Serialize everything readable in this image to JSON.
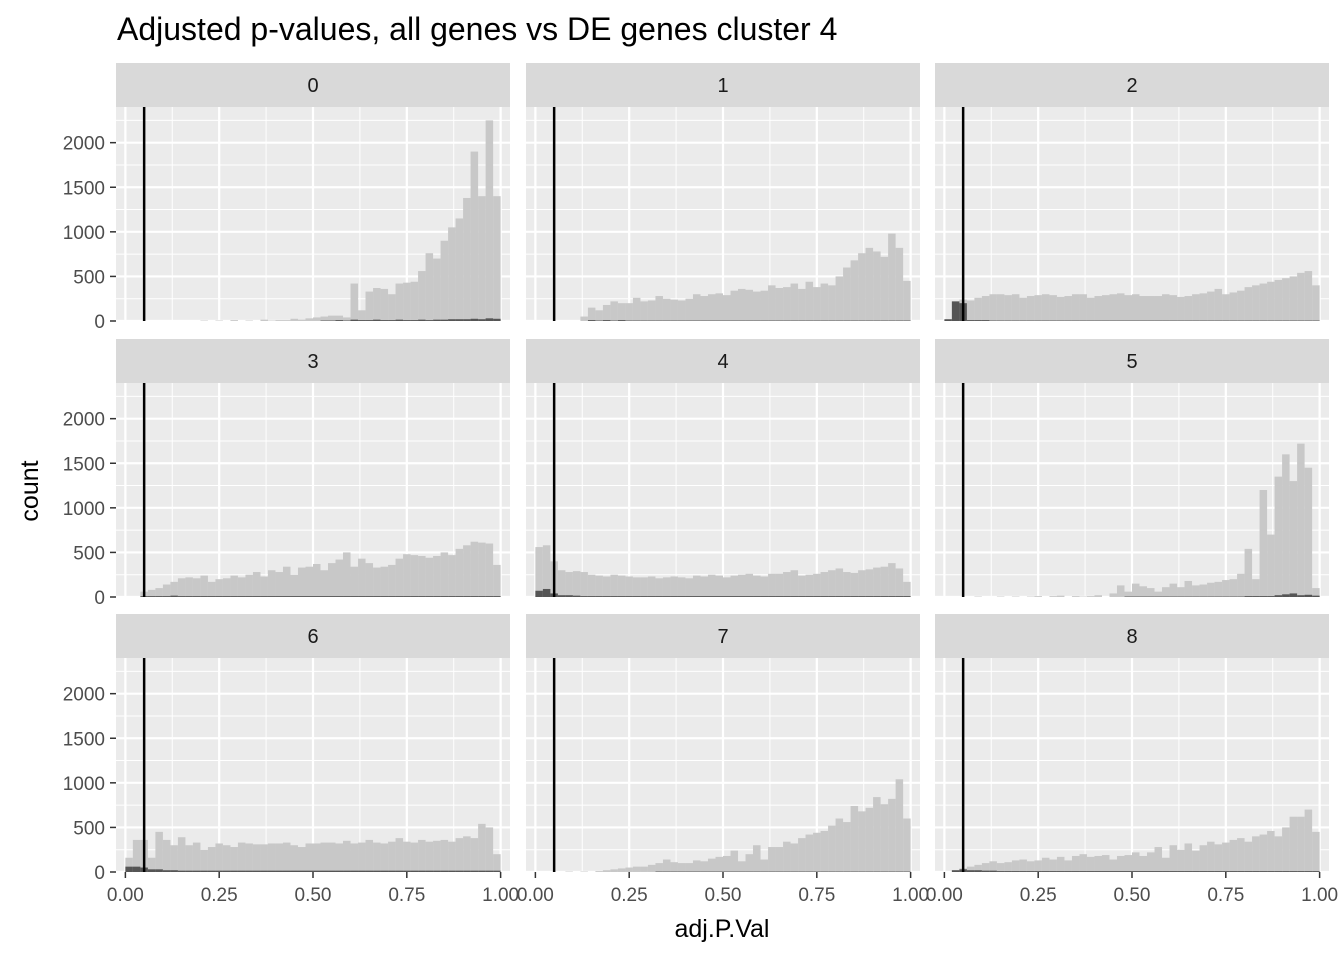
{
  "chart_data": {
    "type": "bar",
    "subtype": "faceted-histogram",
    "title": "Adjusted p-values, all genes vs DE genes cluster 4",
    "xlabel": "adj.P.Val",
    "ylabel": "count",
    "xlim": [
      -0.025,
      1.025
    ],
    "ylim": [
      0,
      2400
    ],
    "x_ticks": [
      0,
      0.25,
      0.5,
      0.75,
      1
    ],
    "x_tick_labels": [
      "0.00",
      "0.25",
      "0.50",
      "0.75",
      "1.00"
    ],
    "y_ticks": [
      0,
      500,
      1000,
      1500,
      2000
    ],
    "y_tick_labels": [
      "0",
      "500",
      "1000",
      "1500",
      "2000"
    ],
    "threshold": 0.05,
    "bin_width": 0.02,
    "grid": true,
    "colors": {
      "all_genes": "#c8c8c8",
      "de_genes": "#555555",
      "threshold_line": "#000000",
      "panel_bg": "#ebebeb",
      "strip_bg": "#d9d9d9",
      "grid": "#ffffff",
      "axis_text": "#4d4d4d",
      "strip_text": "#1a1a1a"
    },
    "facets": [
      {
        "label": "0",
        "all": [
          0,
          0,
          0,
          0,
          0,
          0,
          0,
          0,
          0,
          0,
          5,
          0,
          5,
          0,
          10,
          0,
          5,
          0,
          15,
          5,
          10,
          10,
          25,
          15,
          30,
          40,
          50,
          60,
          60,
          40,
          420,
          120,
          330,
          370,
          360,
          300,
          420,
          430,
          440,
          560,
          760,
          700,
          900,
          1050,
          1150,
          1380,
          1900,
          1400,
          2250,
          1400
        ],
        "de": [
          0,
          0,
          0,
          0,
          0,
          0,
          0,
          0,
          0,
          0,
          0,
          0,
          0,
          0,
          0,
          0,
          0,
          0,
          0,
          0,
          0,
          0,
          0,
          0,
          0,
          0,
          5,
          5,
          10,
          5,
          15,
          10,
          10,
          15,
          10,
          10,
          15,
          10,
          10,
          15,
          10,
          15,
          15,
          20,
          20,
          20,
          25,
          20,
          30,
          25
        ]
      },
      {
        "label": "1",
        "all": [
          0,
          0,
          0,
          0,
          0,
          0,
          50,
          150,
          120,
          180,
          220,
          200,
          200,
          260,
          220,
          230,
          280,
          250,
          240,
          230,
          250,
          300,
          280,
          300,
          310,
          290,
          340,
          360,
          350,
          330,
          340,
          400,
          370,
          380,
          420,
          360,
          440,
          380,
          420,
          400,
          500,
          600,
          680,
          760,
          820,
          780,
          720,
          980,
          820,
          450
        ],
        "de": [
          0,
          0,
          0,
          0,
          0,
          0,
          0,
          10,
          5,
          10,
          5,
          10,
          5,
          5,
          5,
          5,
          5,
          5,
          5,
          5,
          5,
          5,
          5,
          5,
          5,
          5,
          5,
          5,
          5,
          5,
          5,
          5,
          5,
          5,
          5,
          5,
          5,
          5,
          5,
          5,
          5,
          5,
          5,
          5,
          5,
          5,
          5,
          5,
          5,
          5
        ]
      },
      {
        "label": "2",
        "all": [
          0,
          220,
          240,
          230,
          260,
          280,
          300,
          300,
          290,
          300,
          260,
          280,
          290,
          300,
          290,
          270,
          280,
          300,
          300,
          260,
          280,
          290,
          300,
          310,
          290,
          300,
          280,
          280,
          280,
          300,
          290,
          270,
          280,
          300,
          310,
          330,
          360,
          300,
          320,
          340,
          380,
          400,
          420,
          440,
          460,
          480,
          500,
          540,
          560,
          400
        ],
        "de": [
          20,
          220,
          200,
          10,
          10,
          10,
          5,
          5,
          5,
          5,
          5,
          5,
          5,
          5,
          5,
          5,
          5,
          5,
          5,
          5,
          5,
          5,
          5,
          5,
          5,
          5,
          5,
          5,
          5,
          5,
          5,
          5,
          5,
          5,
          5,
          5,
          5,
          5,
          5,
          5,
          5,
          5,
          5,
          5,
          5,
          5,
          5,
          5,
          5,
          5
        ]
      },
      {
        "label": "3",
        "all": [
          0,
          0,
          60,
          80,
          100,
          140,
          170,
          210,
          220,
          210,
          240,
          170,
          200,
          210,
          240,
          220,
          250,
          280,
          230,
          300,
          280,
          340,
          250,
          330,
          340,
          370,
          300,
          380,
          420,
          500,
          340,
          430,
          380,
          330,
          340,
          360,
          430,
          480,
          470,
          460,
          440,
          460,
          500,
          470,
          540,
          580,
          620,
          610,
          600,
          360
        ],
        "de": [
          0,
          0,
          10,
          10,
          10,
          10,
          15,
          10,
          10,
          10,
          10,
          10,
          10,
          10,
          10,
          10,
          10,
          10,
          10,
          10,
          10,
          10,
          10,
          10,
          10,
          10,
          10,
          10,
          10,
          10,
          10,
          10,
          10,
          10,
          10,
          10,
          10,
          10,
          10,
          10,
          10,
          10,
          10,
          10,
          10,
          10,
          10,
          10,
          10,
          10
        ]
      },
      {
        "label": "4",
        "all": [
          560,
          580,
          400,
          300,
          280,
          290,
          280,
          250,
          240,
          230,
          250,
          240,
          230,
          220,
          220,
          230,
          210,
          220,
          230,
          220,
          210,
          240,
          230,
          250,
          240,
          220,
          240,
          250,
          260,
          240,
          230,
          260,
          260,
          280,
          300,
          240,
          250,
          260,
          280,
          300,
          320,
          280,
          270,
          300,
          310,
          330,
          340,
          380,
          320,
          170
        ],
        "de": [
          70,
          90,
          40,
          20,
          20,
          15,
          10,
          10,
          10,
          10,
          10,
          10,
          10,
          10,
          10,
          10,
          10,
          10,
          10,
          10,
          10,
          10,
          10,
          10,
          10,
          10,
          10,
          10,
          10,
          10,
          10,
          10,
          10,
          10,
          10,
          10,
          10,
          10,
          10,
          10,
          10,
          10,
          10,
          10,
          10,
          10,
          10,
          10,
          10,
          10
        ]
      },
      {
        "label": "5",
        "all": [
          0,
          0,
          0,
          0,
          5,
          0,
          0,
          5,
          0,
          5,
          0,
          5,
          10,
          0,
          10,
          15,
          0,
          10,
          5,
          10,
          20,
          0,
          40,
          130,
          60,
          150,
          120,
          100,
          60,
          110,
          150,
          110,
          180,
          130,
          140,
          160,
          170,
          190,
          200,
          260,
          540,
          200,
          1200,
          700,
          1350,
          1600,
          1300,
          1720,
          1450,
          100
        ],
        "de": [
          0,
          0,
          0,
          0,
          0,
          0,
          0,
          0,
          0,
          0,
          0,
          0,
          0,
          0,
          0,
          0,
          0,
          0,
          0,
          0,
          0,
          0,
          0,
          0,
          5,
          5,
          5,
          5,
          5,
          5,
          5,
          5,
          5,
          5,
          5,
          5,
          5,
          5,
          5,
          5,
          10,
          10,
          10,
          10,
          20,
          30,
          40,
          20,
          25,
          15
        ]
      },
      {
        "label": "6",
        "all": [
          160,
          360,
          360,
          160,
          450,
          360,
          300,
          390,
          300,
          330,
          250,
          280,
          320,
          300,
          280,
          330,
          320,
          310,
          310,
          320,
          320,
          330,
          300,
          280,
          320,
          320,
          330,
          330,
          320,
          350,
          320,
          330,
          360,
          330,
          320,
          340,
          380,
          340,
          330,
          360,
          340,
          350,
          360,
          340,
          380,
          400,
          380,
          540,
          500,
          200
        ],
        "de": [
          60,
          60,
          50,
          30,
          30,
          20,
          20,
          15,
          15,
          15,
          15,
          15,
          15,
          15,
          15,
          15,
          15,
          15,
          15,
          15,
          15,
          15,
          15,
          15,
          15,
          15,
          15,
          15,
          15,
          15,
          15,
          15,
          15,
          15,
          15,
          15,
          15,
          15,
          15,
          15,
          15,
          15,
          15,
          15,
          15,
          15,
          15,
          15,
          15,
          15
        ]
      },
      {
        "label": "7",
        "all": [
          0,
          0,
          0,
          0,
          5,
          0,
          5,
          0,
          10,
          20,
          30,
          40,
          50,
          60,
          60,
          80,
          100,
          140,
          110,
          100,
          100,
          130,
          120,
          150,
          170,
          180,
          240,
          120,
          200,
          300,
          140,
          280,
          280,
          340,
          320,
          380,
          420,
          440,
          460,
          520,
          600,
          560,
          740,
          680,
          720,
          840,
          760,
          820,
          1040,
          600
        ],
        "de": [
          0,
          0,
          0,
          0,
          0,
          0,
          0,
          0,
          0,
          0,
          0,
          0,
          0,
          0,
          0,
          0,
          5,
          5,
          5,
          5,
          5,
          5,
          5,
          5,
          5,
          5,
          5,
          5,
          5,
          5,
          5,
          5,
          5,
          5,
          5,
          5,
          5,
          5,
          5,
          5,
          5,
          5,
          5,
          5,
          5,
          5,
          5,
          5,
          5,
          5
        ]
      },
      {
        "label": "8",
        "all": [
          0,
          20,
          40,
          60,
          80,
          100,
          120,
          100,
          110,
          130,
          140,
          120,
          130,
          160,
          140,
          170,
          130,
          180,
          200,
          170,
          180,
          190,
          140,
          180,
          190,
          220,
          180,
          220,
          280,
          160,
          300,
          250,
          320,
          240,
          300,
          340,
          310,
          330,
          360,
          380,
          340,
          400,
          420,
          460,
          400,
          500,
          620,
          620,
          700,
          450
        ],
        "de": [
          0,
          20,
          30,
          20,
          20,
          15,
          15,
          10,
          10,
          10,
          10,
          10,
          10,
          10,
          10,
          10,
          10,
          10,
          10,
          10,
          10,
          10,
          10,
          10,
          10,
          10,
          10,
          10,
          10,
          10,
          10,
          10,
          10,
          10,
          10,
          10,
          10,
          10,
          10,
          10,
          10,
          10,
          10,
          10,
          10,
          10,
          10,
          10,
          10,
          10
        ]
      }
    ]
  }
}
